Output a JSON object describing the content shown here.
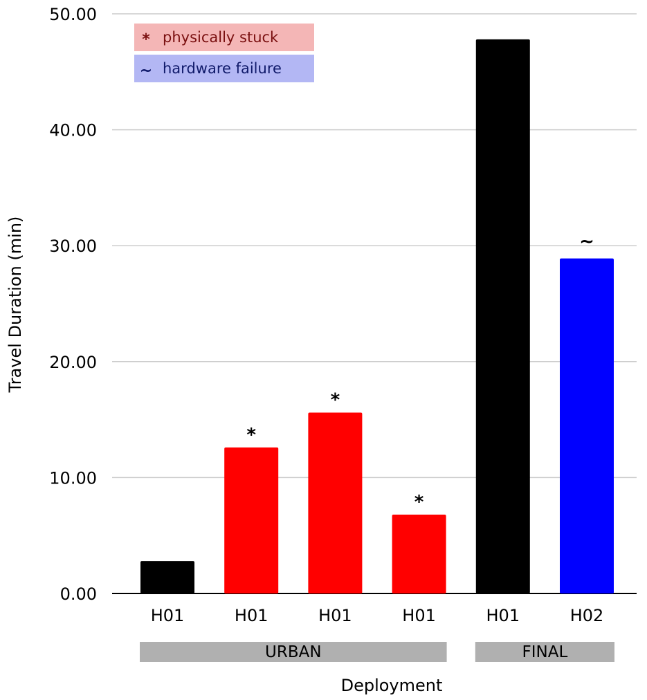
{
  "chart_data": {
    "type": "bar",
    "ylabel": "Travel Duration (min)",
    "xlabel": "Deployment",
    "ylim": [
      0,
      50
    ],
    "yticks": [
      "0.00",
      "10.00",
      "20.00",
      "30.00",
      "40.00",
      "50.00"
    ],
    "categories": [
      "H01",
      "H01",
      "H01",
      "H01",
      "H01",
      "H02"
    ],
    "values": [
      2.8,
      12.6,
      15.6,
      6.8,
      47.8,
      28.9
    ],
    "colors": [
      "#000000",
      "#ff0000",
      "#ff0000",
      "#ff0000",
      "#000000",
      "#0000ff"
    ],
    "markers": [
      "",
      "*",
      "*",
      "*",
      "",
      "~"
    ],
    "groups": [
      {
        "label": "URBAN",
        "start": 0,
        "end": 3
      },
      {
        "label": "FINAL",
        "start": 4,
        "end": 5
      }
    ],
    "legend": {
      "placement": "top-left",
      "entries": [
        {
          "symbol": "*",
          "label": "physically stuck",
          "background": "#f4b6b6",
          "text_color": "#7a1010"
        },
        {
          "symbol": "~",
          "label": "hardware failure",
          "background": "#b3b7f4",
          "text_color": "#101a6a"
        }
      ]
    },
    "grid": true
  }
}
